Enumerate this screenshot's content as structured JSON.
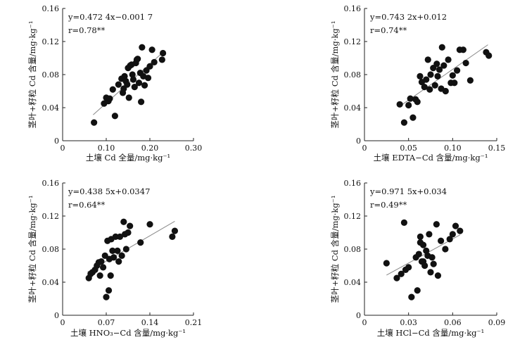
{
  "chart_data": [
    {
      "type": "scatter",
      "equation": "y=0.472 4x−0.001 7",
      "r_label": "r=0.78**",
      "xlabel": "土壤 Cd 全量/mg·kg⁻¹",
      "ylabel": "茎叶+籽粒 Cd 含量/mg·kg⁻¹",
      "xlim": [
        0,
        0.3
      ],
      "ylim": [
        0,
        0.16
      ],
      "xticks": [
        "0",
        "0.10",
        "0.20",
        "0.30"
      ],
      "yticks": [
        "0",
        "0.04",
        "0.08",
        "0.12",
        "0.16"
      ],
      "xtick_values": [
        0,
        0.1,
        0.2,
        0.3
      ],
      "ytick_values": [
        0,
        0.04,
        0.08,
        0.12,
        0.16
      ],
      "fit": {
        "slope": 0.4724,
        "intercept": -0.0017,
        "x_range": [
          0.07,
          0.23
        ]
      },
      "x": [
        0.072,
        0.095,
        0.1,
        0.105,
        0.108,
        0.115,
        0.12,
        0.128,
        0.135,
        0.138,
        0.14,
        0.142,
        0.145,
        0.148,
        0.15,
        0.152,
        0.155,
        0.158,
        0.16,
        0.162,
        0.165,
        0.168,
        0.17,
        0.172,
        0.175,
        0.178,
        0.18,
        0.182,
        0.185,
        0.188,
        0.192,
        0.196,
        0.2,
        0.205,
        0.21,
        0.228,
        0.23
      ],
      "y": [
        0.022,
        0.045,
        0.052,
        0.048,
        0.051,
        0.062,
        0.03,
        0.068,
        0.075,
        0.058,
        0.063,
        0.078,
        0.072,
        0.068,
        0.088,
        0.052,
        0.091,
        0.092,
        0.08,
        0.074,
        0.065,
        0.094,
        0.098,
        0.099,
        0.07,
        0.082,
        0.047,
        0.113,
        0.078,
        0.067,
        0.085,
        0.076,
        0.09,
        0.11,
        0.095,
        0.098,
        0.106
      ]
    },
    {
      "type": "scatter",
      "equation": "y=0.743 2x+0.012",
      "r_label": "r=0.74**",
      "xlabel": "土壤 EDTA−Cd 含量/mg·kg⁻¹",
      "ylabel": "茎叶+籽粒 Cd 含量/mg·kg⁻¹",
      "xlim": [
        0,
        0.15
      ],
      "ylim": [
        0,
        0.16
      ],
      "xticks": [
        "0",
        "0.05",
        "0.10",
        "0.15"
      ],
      "yticks": [
        "0",
        "0.04",
        "0.08",
        "0.12",
        "0.16"
      ],
      "xtick_values": [
        0,
        0.05,
        0.1,
        0.15
      ],
      "ytick_values": [
        0,
        0.04,
        0.08,
        0.12,
        0.16
      ],
      "fit": {
        "slope": 0.7432,
        "intercept": 0.012,
        "x_range": [
          0.04,
          0.14
        ]
      },
      "x": [
        0.04,
        0.045,
        0.05,
        0.052,
        0.055,
        0.058,
        0.06,
        0.063,
        0.065,
        0.068,
        0.07,
        0.072,
        0.074,
        0.075,
        0.078,
        0.08,
        0.082,
        0.083,
        0.085,
        0.087,
        0.088,
        0.09,
        0.092,
        0.095,
        0.098,
        0.1,
        0.102,
        0.105,
        0.108,
        0.112,
        0.115,
        0.12,
        0.138,
        0.141
      ],
      "y": [
        0.044,
        0.022,
        0.043,
        0.051,
        0.028,
        0.05,
        0.047,
        0.078,
        0.071,
        0.065,
        0.074,
        0.098,
        0.062,
        0.08,
        0.088,
        0.067,
        0.093,
        0.078,
        0.086,
        0.063,
        0.113,
        0.091,
        0.06,
        0.098,
        0.07,
        0.079,
        0.07,
        0.085,
        0.11,
        0.11,
        0.094,
        0.073,
        0.107,
        0.103
      ]
    },
    {
      "type": "scatter",
      "equation": "y=0.438 5x+0.0347",
      "r_label": "r=0.64**",
      "xlabel": "土壤 HNO₃−Cd 含量/mg·kg⁻¹",
      "ylabel": "茎叶+籽粒 Cd 含量/mg·kg⁻¹",
      "xlim": [
        0,
        0.21
      ],
      "ylim": [
        0,
        0.16
      ],
      "xticks": [
        "0",
        "0.07",
        "0.14",
        "0.21"
      ],
      "yticks": [
        "0",
        "0.04",
        "0.08",
        "0.12",
        "0.16"
      ],
      "xtick_values": [
        0,
        0.07,
        0.14,
        0.21
      ],
      "ytick_values": [
        0,
        0.04,
        0.08,
        0.12,
        0.16
      ],
      "fit": {
        "slope": 0.4385,
        "intercept": 0.0347,
        "x_range": [
          0.04,
          0.18
        ]
      },
      "x": [
        0.042,
        0.045,
        0.048,
        0.052,
        0.055,
        0.058,
        0.06,
        0.062,
        0.065,
        0.068,
        0.07,
        0.072,
        0.074,
        0.075,
        0.077,
        0.078,
        0.08,
        0.082,
        0.085,
        0.088,
        0.09,
        0.092,
        0.095,
        0.098,
        0.1,
        0.102,
        0.105,
        0.108,
        0.125,
        0.14,
        0.176,
        0.18
      ],
      "y": [
        0.045,
        0.05,
        0.052,
        0.055,
        0.06,
        0.064,
        0.048,
        0.065,
        0.058,
        0.072,
        0.022,
        0.09,
        0.03,
        0.068,
        0.048,
        0.092,
        0.078,
        0.07,
        0.095,
        0.078,
        0.065,
        0.095,
        0.072,
        0.113,
        0.098,
        0.08,
        0.1,
        0.108,
        0.088,
        0.11,
        0.095,
        0.102
      ]
    },
    {
      "type": "scatter",
      "equation": "y=0.971 5x+0.034",
      "r_label": "r=0.49**",
      "xlabel": "土壤 HCl−Cd 含量/mg·kg⁻¹",
      "ylabel": "茎叶+籽粒 Cd 含量/mg·kg⁻¹",
      "xlim": [
        0,
        0.09
      ],
      "ylim": [
        0,
        0.16
      ],
      "xticks": [
        "0",
        "0.03",
        "0.06",
        "0.09"
      ],
      "yticks": [
        "0",
        "0.04",
        "0.08",
        "0.12",
        "0.16"
      ],
      "xtick_values": [
        0,
        0.03,
        0.06,
        0.09
      ],
      "ytick_values": [
        0,
        0.04,
        0.08,
        0.12,
        0.16
      ],
      "fit": {
        "slope": 0.9715,
        "intercept": 0.034,
        "x_range": [
          0.015,
          0.065
        ]
      },
      "x": [
        0.015,
        0.022,
        0.025,
        0.027,
        0.028,
        0.03,
        0.032,
        0.035,
        0.036,
        0.037,
        0.038,
        0.038,
        0.039,
        0.04,
        0.04,
        0.041,
        0.042,
        0.043,
        0.044,
        0.045,
        0.046,
        0.047,
        0.049,
        0.05,
        0.052,
        0.055,
        0.058,
        0.06,
        0.062,
        0.065
      ],
      "y": [
        0.063,
        0.045,
        0.05,
        0.112,
        0.055,
        0.058,
        0.022,
        0.07,
        0.03,
        0.074,
        0.088,
        0.095,
        0.065,
        0.085,
        0.065,
        0.06,
        0.078,
        0.072,
        0.098,
        0.052,
        0.07,
        0.062,
        0.11,
        0.048,
        0.09,
        0.08,
        0.092,
        0.098,
        0.108,
        0.102
      ]
    }
  ]
}
